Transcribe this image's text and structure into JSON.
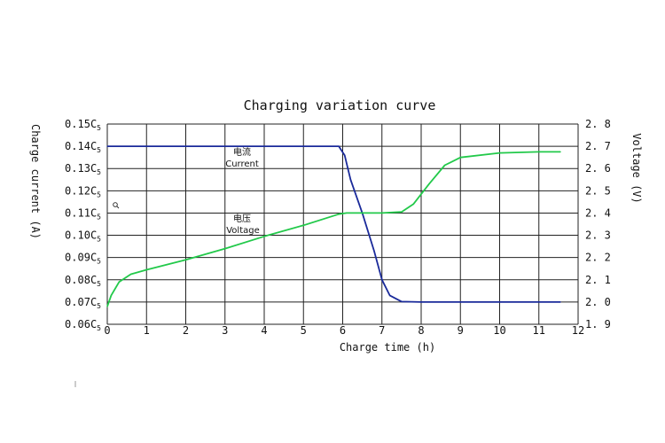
{
  "chart_data": {
    "type": "line",
    "title": "Charging variation curve",
    "xlabel": "Charge time (h)",
    "ylabel_left": "Charge current (A)",
    "ylabel_right": "Voltage (V)",
    "xlim": [
      0,
      12
    ],
    "ylim_left": [
      0.06,
      0.15
    ],
    "ylim_right": [
      1.9,
      2.8
    ],
    "grid": true,
    "x_ticks": [
      "0",
      "1",
      "2",
      "3",
      "4",
      "5",
      "6",
      "7",
      "8",
      "9",
      "10",
      "11",
      "12"
    ],
    "y_left_ticks": [
      {
        "value": 0.15,
        "label": "0.15C",
        "sub": "5"
      },
      {
        "value": 0.14,
        "label": "0.14C",
        "sub": "5"
      },
      {
        "value": 0.13,
        "label": "0.13C",
        "sub": "5"
      },
      {
        "value": 0.12,
        "label": "0.12C",
        "sub": "5"
      },
      {
        "value": 0.11,
        "label": "0.11C",
        "sub": "5"
      },
      {
        "value": 0.1,
        "label": "0.10C",
        "sub": "5"
      },
      {
        "value": 0.09,
        "label": "0.09C",
        "sub": "5"
      },
      {
        "value": 0.08,
        "label": "0.08C",
        "sub": "5"
      },
      {
        "value": 0.07,
        "label": "0.07C",
        "sub": "5"
      },
      {
        "value": 0.06,
        "label": "0.06C",
        "sub": "5"
      }
    ],
    "y_right_ticks": [
      {
        "value": 2.8,
        "label": "2. 8"
      },
      {
        "value": 2.7,
        "label": "2. 7"
      },
      {
        "value": 2.6,
        "label": "2. 6"
      },
      {
        "value": 2.5,
        "label": "2. 5"
      },
      {
        "value": 2.4,
        "label": "2. 4"
      },
      {
        "value": 2.3,
        "label": "2. 3"
      },
      {
        "value": 2.2,
        "label": "2. 2"
      },
      {
        "value": 2.1,
        "label": "2. 1"
      },
      {
        "value": 2.0,
        "label": "2. 0"
      },
      {
        "value": 1.9,
        "label": "1. 9"
      }
    ],
    "series": [
      {
        "name": "Current",
        "name_cn": "电流",
        "axis": "left",
        "color": "#1a2a9a",
        "points": [
          [
            0,
            0.14
          ],
          [
            5.9,
            0.14
          ],
          [
            6.05,
            0.136
          ],
          [
            6.2,
            0.125
          ],
          [
            6.5,
            0.11
          ],
          [
            6.8,
            0.093
          ],
          [
            7.0,
            0.08
          ],
          [
            7.2,
            0.073
          ],
          [
            7.5,
            0.0702
          ],
          [
            8.0,
            0.07
          ],
          [
            11.55,
            0.07
          ]
        ]
      },
      {
        "name": "Voltage",
        "name_cn": "电压",
        "axis": "right",
        "color": "#22c94a",
        "points": [
          [
            0,
            1.98
          ],
          [
            0.1,
            2.03
          ],
          [
            0.3,
            2.09
          ],
          [
            0.6,
            2.125
          ],
          [
            1.0,
            2.145
          ],
          [
            2.0,
            2.19
          ],
          [
            3.0,
            2.24
          ],
          [
            4.0,
            2.295
          ],
          [
            5.0,
            2.345
          ],
          [
            5.9,
            2.395
          ],
          [
            6.1,
            2.4
          ],
          [
            7.0,
            2.4
          ],
          [
            7.5,
            2.405
          ],
          [
            7.8,
            2.44
          ],
          [
            8.2,
            2.53
          ],
          [
            8.6,
            2.615
          ],
          [
            9.0,
            2.65
          ],
          [
            10.0,
            2.67
          ],
          [
            11.0,
            2.675
          ],
          [
            11.55,
            2.675
          ]
        ]
      }
    ]
  }
}
